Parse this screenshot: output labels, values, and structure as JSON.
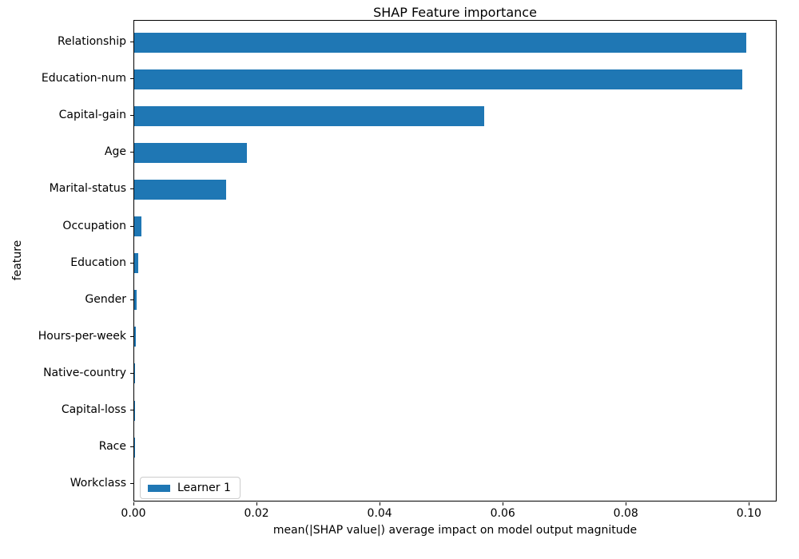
{
  "chart_data": {
    "type": "bar",
    "orientation": "horizontal",
    "title": "SHAP Feature importance",
    "xlabel": "mean(|SHAP value|) average impact on model output magnitude",
    "ylabel": "feature",
    "categories": [
      "Relationship",
      "Education-num",
      "Capital-gain",
      "Age",
      "Marital-status",
      "Occupation",
      "Education",
      "Gender",
      "Hours-per-week",
      "Native-country",
      "Capital-loss",
      "Race",
      "Workclass"
    ],
    "series": [
      {
        "name": "Learner 1",
        "color": "#1f77b4",
        "values": [
          0.0995,
          0.0988,
          0.0569,
          0.0183,
          0.0149,
          0.0012,
          0.0007,
          0.0004,
          0.0002,
          5e-05,
          3e-05,
          2e-05,
          1e-05
        ]
      }
    ],
    "xlim": [
      0,
      0.1045
    ],
    "xticks": [
      0,
      0.02,
      0.04,
      0.06,
      0.08,
      0.1
    ],
    "xtick_labels": [
      "0.00",
      "0.02",
      "0.04",
      "0.06",
      "0.08",
      "0.10"
    ],
    "legend": {
      "position": "lower left",
      "entries": [
        {
          "label": "Learner 1",
          "color": "#1f77b4"
        }
      ]
    },
    "grid": false,
    "background_color": "#ffffff",
    "spine_color": "#000000"
  }
}
